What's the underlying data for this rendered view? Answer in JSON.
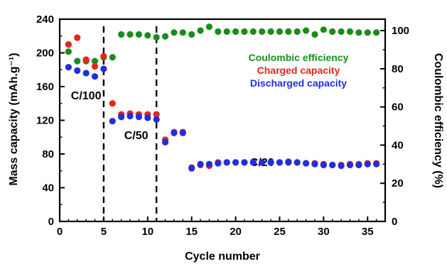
{
  "chart_data": {
    "type": "scatter",
    "xlabel": "Cycle number",
    "ylabel_left": "Mass capacity (mAh.g⁻¹)",
    "ylabel_right": "Coulombic efficiency (%)",
    "xlim": [
      0,
      37
    ],
    "ylim_left": [
      0,
      240
    ],
    "ylim_right": [
      0,
      106
    ],
    "x_ticks": [
      0,
      5,
      10,
      15,
      20,
      25,
      30,
      35
    ],
    "y_ticks_left": [
      0,
      40,
      80,
      120,
      160,
      200,
      240
    ],
    "y_ticks_right": [
      0,
      20,
      40,
      60,
      80,
      100
    ],
    "grid": false,
    "legend_placement": "upper-right",
    "colors": {
      "coulombic": "#1a8c1a",
      "charged": "#e8231c",
      "discharged": "#1f2ee0"
    },
    "vertical_dashed_lines_at_x": [
      5,
      11
    ],
    "rate_labels": [
      {
        "text": "C/100",
        "x": 3.0,
        "y": 149
      },
      {
        "text": "C/50",
        "x": 8.7,
        "y": 102
      },
      {
        "text": "C/20",
        "x": 23.0,
        "y": 70
      }
    ],
    "series": [
      {
        "name": "Coulombic efficiency",
        "axis": "right",
        "x": [
          1,
          2,
          3,
          4,
          5,
          6,
          7,
          8,
          9,
          10,
          11,
          12,
          13,
          14,
          15,
          16,
          17,
          18,
          19,
          20,
          21,
          22,
          23,
          24,
          25,
          26,
          27,
          28,
          29,
          30,
          31,
          32,
          33,
          34,
          35,
          36
        ],
        "values": [
          89,
          84,
          84,
          84,
          86,
          86,
          98,
          98,
          98,
          97.5,
          96.5,
          97,
          99,
          99,
          98,
          100,
          102,
          99.5,
          99.5,
          99.5,
          99.5,
          99.5,
          99.5,
          99.5,
          99.5,
          99.5,
          99.5,
          100,
          98,
          100.5,
          99.5,
          99.5,
          99.5,
          99,
          99,
          99
        ]
      },
      {
        "name": "Charged capacity",
        "axis": "left",
        "x": [
          1,
          2,
          3,
          4,
          5,
          6,
          7,
          8,
          9,
          10,
          11,
          12,
          13,
          14,
          15,
          16,
          17,
          18,
          19,
          20,
          21,
          22,
          23,
          24,
          25,
          26,
          27,
          28,
          29,
          30,
          31,
          32,
          33,
          34,
          35,
          36
        ],
        "values": [
          210,
          218,
          192,
          184,
          196,
          140,
          127,
          128,
          127,
          127,
          127,
          97,
          106,
          106,
          64,
          67,
          66,
          70,
          70,
          70,
          70,
          70,
          70,
          70,
          70,
          71,
          70,
          69,
          69,
          68,
          67,
          67,
          68,
          68,
          69,
          69
        ]
      },
      {
        "name": "Discharged capacity",
        "axis": "left",
        "x": [
          1,
          2,
          3,
          4,
          5,
          6,
          7,
          8,
          9,
          10,
          11,
          12,
          13,
          14,
          15,
          16,
          17,
          18,
          19,
          20,
          21,
          22,
          23,
          24,
          25,
          26,
          27,
          28,
          29,
          30,
          31,
          32,
          33,
          34,
          35,
          36
        ],
        "values": [
          183,
          179,
          176,
          172,
          181,
          119,
          124,
          125,
          124,
          123,
          121,
          94,
          105,
          105,
          63,
          68,
          68,
          69,
          70,
          70,
          70,
          70,
          70,
          70,
          70,
          70,
          70,
          69,
          68,
          67,
          67,
          66,
          67,
          67,
          68,
          68
        ]
      }
    ]
  }
}
